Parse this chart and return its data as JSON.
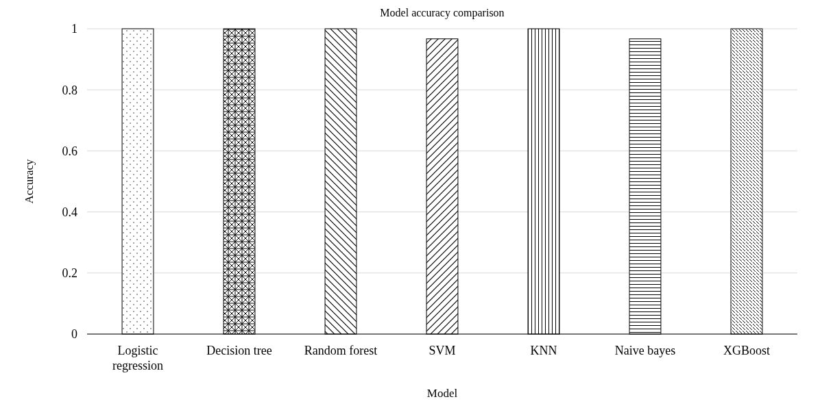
{
  "chart_data": {
    "type": "bar",
    "title": "Model accuracy comparison",
    "xlabel": "Model",
    "ylabel": "Accuracy",
    "categories": [
      "Logistic regression",
      "Decision tree",
      "Random forest",
      "SVM",
      "KNN",
      "Naive bayes",
      "XGBoost"
    ],
    "values": [
      1,
      1,
      1,
      0.967,
      1,
      0.967,
      1
    ],
    "colors": [
      "#000000",
      "#000000",
      "#000000",
      "#000000",
      "#000000",
      "#000000",
      "#000000"
    ],
    "ylim": [
      0,
      1
    ],
    "yticks": [
      0,
      {
        "value": 0.2,
        "label": "0.2"
      },
      {
        "value": 0.4,
        "label": "0.4"
      },
      {
        "value": 0.6,
        "label": "0.6"
      },
      {
        "value": 0.8,
        "label": "0.8"
      },
      1
    ],
    "grid": "y"
  }
}
